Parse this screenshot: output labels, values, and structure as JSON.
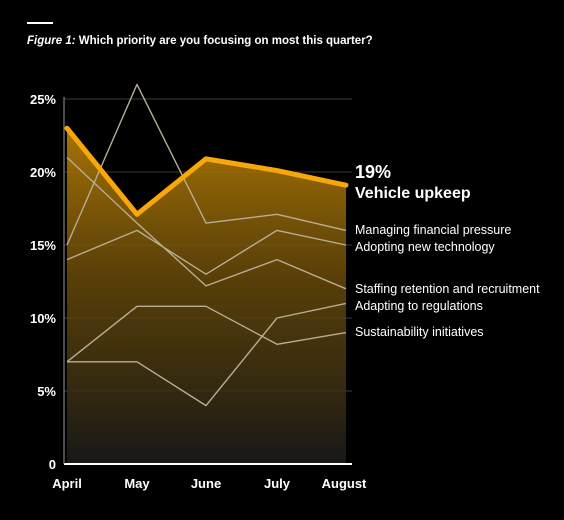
{
  "figure": {
    "label": "Figure 1:",
    "question": "Which priority are you focusing on most this quarter?"
  },
  "colors": {
    "highlight": "#f7a70a",
    "other": "#b8ad95",
    "grid": "#3a3a3a",
    "background": "#000000"
  },
  "chart_data": {
    "type": "line",
    "title": "Which priority are you focusing on most this quarter?",
    "categories": [
      "April",
      "May",
      "June",
      "July",
      "August"
    ],
    "ylim": [
      0,
      25
    ],
    "yticks": [
      {
        "value": 0,
        "label": "0"
      },
      {
        "value": 5,
        "label": "5%"
      },
      {
        "value": 10,
        "label": "10%"
      },
      {
        "value": 15,
        "label": "15%"
      },
      {
        "value": 20,
        "label": "20%"
      },
      {
        "value": 25,
        "label": "25%"
      }
    ],
    "grid": true,
    "highlight": {
      "name": "Vehicle upkeep",
      "end_label": "19%",
      "values": [
        23,
        17.1,
        20.9,
        20.1,
        19.1
      ]
    },
    "series": [
      {
        "name": "Managing financial pressure",
        "values": [
          15,
          26,
          16.5,
          17.1,
          16.0
        ]
      },
      {
        "name": "Adopting new technology",
        "values": [
          14,
          16,
          13,
          16,
          15
        ]
      },
      {
        "name": "Staffing retention and recruitment",
        "values": [
          21,
          16.5,
          12.2,
          14,
          12
        ]
      },
      {
        "name": "Adapting to regulations",
        "values": [
          7,
          7,
          4,
          10,
          11
        ]
      },
      {
        "name": "Sustainability initiatives",
        "values": [
          7,
          10.8,
          10.8,
          8.2,
          9
        ]
      }
    ]
  }
}
